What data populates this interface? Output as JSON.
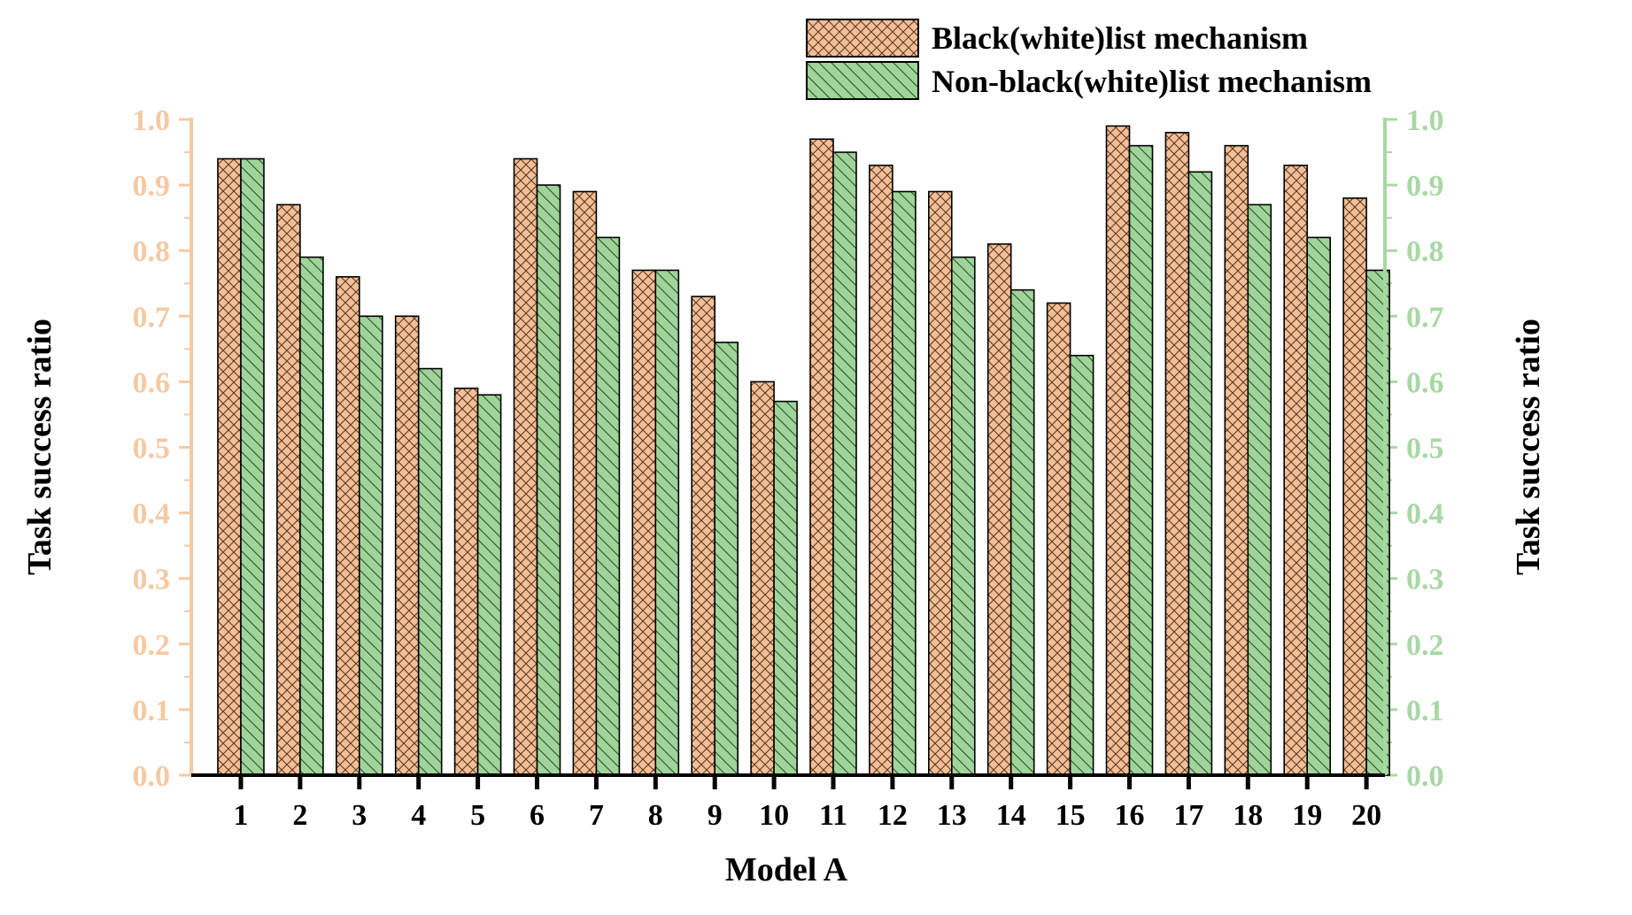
{
  "chart_data": {
    "type": "bar",
    "xlabel": "Model A",
    "ylabel_left": "Task success ratio",
    "ylabel_right": "Task success ratio",
    "ylim": [
      0.0,
      1.0
    ],
    "yticks": [
      "0.0",
      "0.1",
      "0.2",
      "0.3",
      "0.4",
      "0.5",
      "0.6",
      "0.7",
      "0.8",
      "0.9",
      "1.0"
    ],
    "categories": [
      "1",
      "2",
      "3",
      "4",
      "5",
      "6",
      "7",
      "8",
      "9",
      "10",
      "11",
      "12",
      "13",
      "14",
      "15",
      "16",
      "17",
      "18",
      "19",
      "20"
    ],
    "legend_position": "top-right",
    "grid": false,
    "series": [
      {
        "name": "Black(white)list mechanism",
        "color": "#f4bf96",
        "pattern": "crosshatch",
        "values": [
          0.94,
          0.87,
          0.76,
          0.7,
          0.59,
          0.94,
          0.89,
          0.77,
          0.73,
          0.6,
          0.97,
          0.93,
          0.89,
          0.81,
          0.72,
          0.99,
          0.98,
          0.96,
          0.93,
          0.88
        ]
      },
      {
        "name": "Non-black(white)list mechanism",
        "color": "#9fd49a",
        "pattern": "diagonal",
        "values": [
          0.94,
          0.79,
          0.7,
          0.62,
          0.58,
          0.9,
          0.82,
          0.77,
          0.66,
          0.57,
          0.95,
          0.89,
          0.79,
          0.74,
          0.64,
          0.96,
          0.92,
          0.87,
          0.82,
          0.77
        ]
      }
    ],
    "left_axis_color": "#f5c9a3",
    "right_axis_color": "#a8d8a4"
  }
}
